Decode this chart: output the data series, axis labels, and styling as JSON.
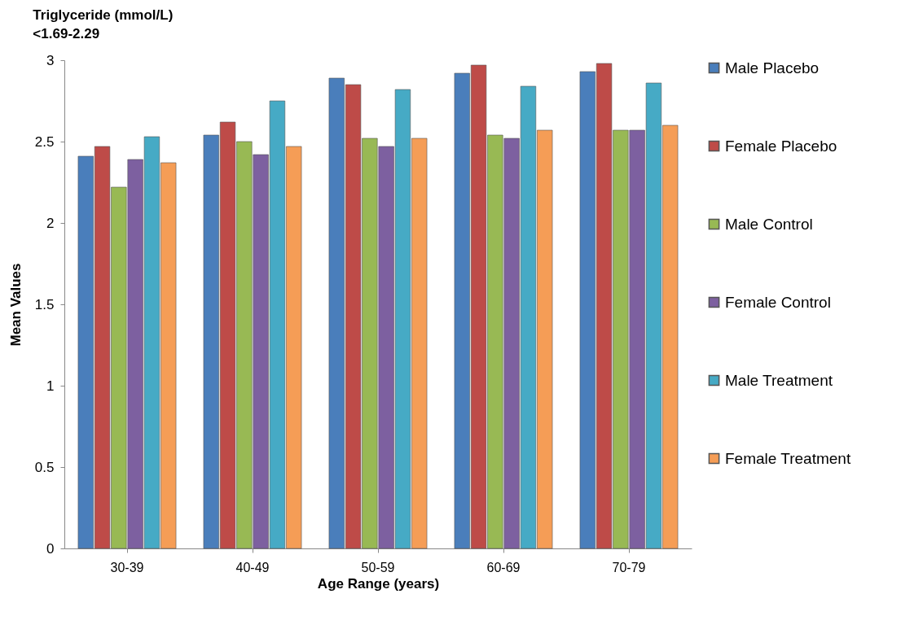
{
  "chart_data": {
    "type": "bar",
    "title": "Triglyceride (mmol/L)",
    "subtitle": "<1.69-2.29",
    "xlabel": "Age Range (years)",
    "ylabel": "Mean Values",
    "categories": [
      "30-39",
      "40-49",
      "50-59",
      "60-69",
      "70-79"
    ],
    "series": [
      {
        "name": "Male Placebo",
        "color": "#4a7ebb",
        "values": [
          2.41,
          2.54,
          2.89,
          2.92,
          2.93
        ]
      },
      {
        "name": "Female Placebo",
        "color": "#be4b48",
        "values": [
          2.47,
          2.62,
          2.85,
          2.97,
          2.98
        ]
      },
      {
        "name": "Male Control",
        "color": "#98b954",
        "values": [
          2.22,
          2.5,
          2.52,
          2.54,
          2.57
        ]
      },
      {
        "name": "Female Control",
        "color": "#7d60a0",
        "values": [
          2.39,
          2.42,
          2.47,
          2.52,
          2.57
        ]
      },
      {
        "name": "Male Treatment",
        "color": "#46aac5",
        "values": [
          2.53,
          2.75,
          2.82,
          2.84,
          2.86
        ]
      },
      {
        "name": "Female Treatment",
        "color": "#f59d56",
        "values": [
          2.37,
          2.47,
          2.52,
          2.57,
          2.6
        ]
      }
    ],
    "ylim": [
      0,
      3
    ],
    "yticks": [
      0,
      0.5,
      1,
      1.5,
      2,
      2.5,
      3
    ],
    "grid": false,
    "legend": "right"
  }
}
